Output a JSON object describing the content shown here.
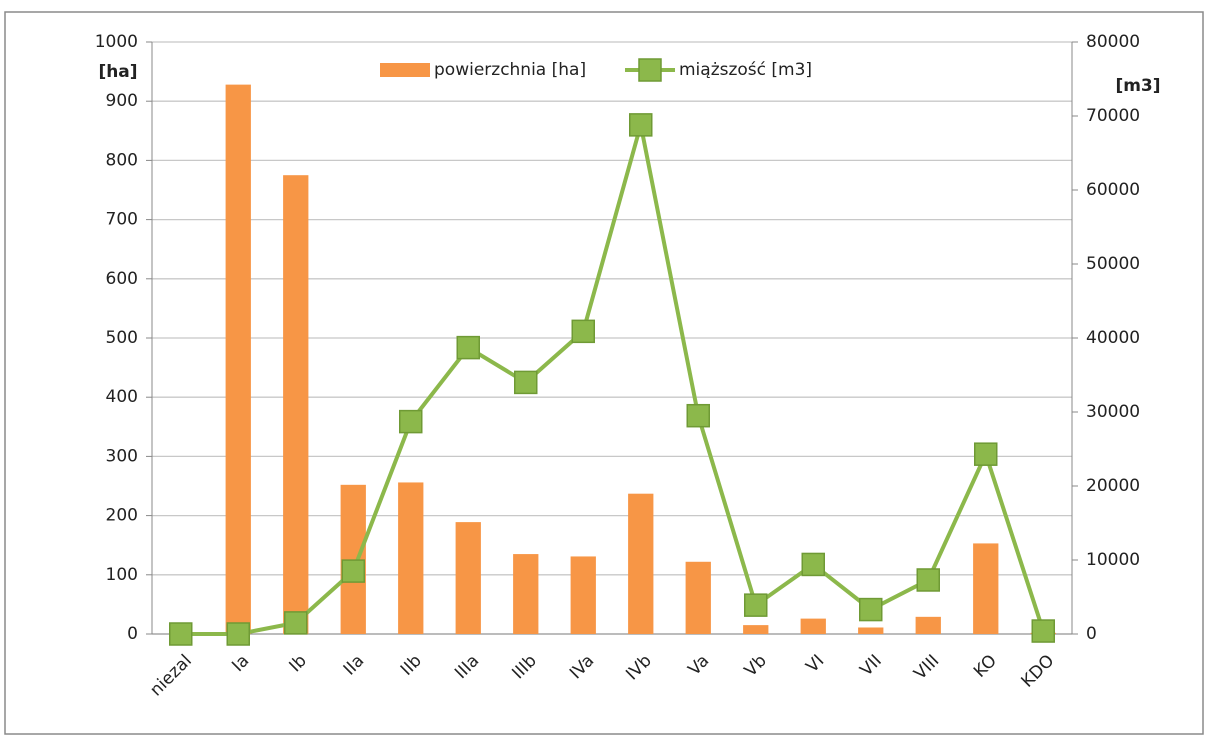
{
  "chart_data": {
    "type": "bar_line",
    "y_label": "[ha]",
    "y2_label": "[m3]",
    "categories": [
      "niezal",
      "Ia",
      "Ib",
      "IIa",
      "IIb",
      "IIIa",
      "IIIb",
      "IVa",
      "IVb",
      "Va",
      "Vb",
      "VI",
      "VII",
      "VIII",
      "KO",
      "KDO"
    ],
    "series": [
      {
        "name": "powierzchnia [ha]",
        "type": "bar",
        "color": "#f79646",
        "values": [
          0,
          928,
          775,
          252,
          256,
          189,
          135,
          131,
          237,
          122,
          15,
          26,
          11,
          29,
          153,
          2
        ]
      },
      {
        "name": "miąższość [m3]",
        "type": "line",
        "axis": "y2",
        "color": "#8cb84b",
        "values": [
          0,
          0,
          1500,
          8500,
          28700,
          38700,
          34000,
          40900,
          68800,
          29500,
          3900,
          9400,
          3300,
          7300,
          24300,
          400
        ]
      }
    ],
    "ylim": [
      0,
      1000
    ],
    "yticks": [
      0,
      100,
      200,
      300,
      400,
      500,
      600,
      700,
      800,
      900,
      1000
    ],
    "y2lim": [
      0,
      80000
    ],
    "y2ticks": [
      0,
      10000,
      20000,
      30000,
      40000,
      50000,
      60000,
      70000,
      80000
    ],
    "grid": true,
    "legend": "top"
  }
}
